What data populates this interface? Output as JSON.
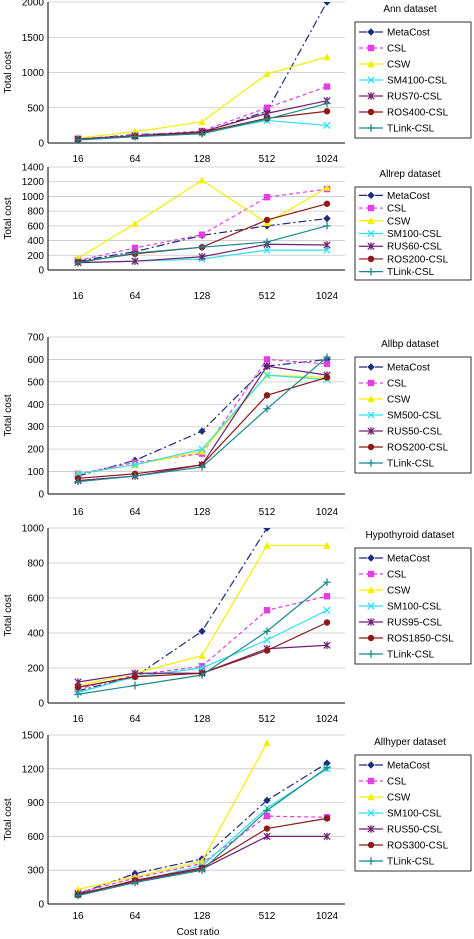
{
  "figure": {
    "ylabel": "Total cost",
    "xlabel": "Cost ratio"
  },
  "chart_data": [
    {
      "type": "line",
      "title": "Ann dataset",
      "x": [
        16,
        64,
        128,
        512,
        1024
      ],
      "ylim": [
        0,
        2000
      ],
      "yticks": [
        0,
        500,
        1000,
        1500,
        2000
      ],
      "ylabel": "Total cost",
      "series": [
        {
          "name": "MetaCost",
          "values": [
            50,
            120,
            150,
            450,
            2000
          ],
          "color": "#1f2a7a",
          "dash": "8,3,2,3",
          "marker": "diamond"
        },
        {
          "name": "CSL",
          "values": [
            60,
            110,
            170,
            500,
            800
          ],
          "color": "#e040e0",
          "dash": "4,3",
          "marker": "square"
        },
        {
          "name": "CSW",
          "values": [
            70,
            160,
            300,
            980,
            1220
          ],
          "color": "#f0f000",
          "dash": "",
          "marker": "triangle"
        },
        {
          "name": "SM4100-CSL",
          "values": [
            40,
            90,
            140,
            320,
            250
          ],
          "color": "#30e0f0",
          "dash": "",
          "marker": "x"
        },
        {
          "name": "RUS70-CSL",
          "values": [
            55,
            100,
            160,
            420,
            600
          ],
          "color": "#702070",
          "dash": "",
          "marker": "star"
        },
        {
          "name": "ROS400-CSL",
          "values": [
            50,
            95,
            150,
            350,
            450
          ],
          "color": "#8b1a1a",
          "dash": "",
          "marker": "circle"
        },
        {
          "name": "TLink-CSL",
          "values": [
            45,
            90,
            130,
            340,
            560
          ],
          "color": "#1a8a8a",
          "dash": "",
          "marker": "plus"
        }
      ]
    },
    {
      "type": "line",
      "title": "Allrep dataset",
      "x": [
        16,
        64,
        128,
        512,
        1024
      ],
      "ylim": [
        0,
        1400
      ],
      "yticks": [
        0,
        200,
        400,
        600,
        800,
        1000,
        1200,
        1400
      ],
      "ylabel": "Total cost",
      "series": [
        {
          "name": "MetaCost",
          "values": [
            120,
            250,
            470,
            600,
            700
          ],
          "color": "#1f2a7a",
          "dash": "8,3,2,3",
          "marker": "diamond"
        },
        {
          "name": "CSL",
          "values": [
            130,
            300,
            480,
            990,
            1100
          ],
          "color": "#e040e0",
          "dash": "4,3",
          "marker": "square"
        },
        {
          "name": "CSW",
          "values": [
            160,
            630,
            1220,
            640,
            1120
          ],
          "color": "#f0f000",
          "dash": "",
          "marker": "triangle"
        },
        {
          "name": "SM100-CSL",
          "values": [
            100,
            120,
            150,
            270,
            270
          ],
          "color": "#30e0f0",
          "dash": "",
          "marker": "x"
        },
        {
          "name": "RUS60-CSL",
          "values": [
            100,
            120,
            180,
            350,
            340
          ],
          "color": "#702070",
          "dash": "",
          "marker": "star"
        },
        {
          "name": "ROS200-CSL",
          "values": [
            110,
            220,
            310,
            680,
            900
          ],
          "color": "#8b1a1a",
          "dash": "",
          "marker": "circle"
        },
        {
          "name": "TLink-CSL",
          "values": [
            100,
            230,
            310,
            380,
            600
          ],
          "color": "#1a8a8a",
          "dash": "",
          "marker": "plus"
        }
      ]
    },
    {
      "type": "line",
      "title": "Allbp dataset",
      "x": [
        16,
        64,
        128,
        512,
        1024
      ],
      "ylim": [
        0,
        700
      ],
      "yticks": [
        0,
        100,
        200,
        300,
        400,
        500,
        600,
        700
      ],
      "ylabel": "Total cost",
      "series": [
        {
          "name": "MetaCost",
          "values": [
            80,
            150,
            280,
            570,
            600
          ],
          "color": "#1f2a7a",
          "dash": "8,3,2,3",
          "marker": "diamond"
        },
        {
          "name": "CSL",
          "values": [
            90,
            140,
            180,
            600,
            580
          ],
          "color": "#e040e0",
          "dash": "4,3",
          "marker": "square"
        },
        {
          "name": "CSW",
          "values": [
            90,
            130,
            190,
            530,
            520
          ],
          "color": "#f0f000",
          "dash": "",
          "marker": "triangle"
        },
        {
          "name": "SM500-CSL",
          "values": [
            90,
            130,
            200,
            530,
            510
          ],
          "color": "#30e0f0",
          "dash": "",
          "marker": "x"
        },
        {
          "name": "RUS50-CSL",
          "values": [
            60,
            80,
            130,
            570,
            530
          ],
          "color": "#702070",
          "dash": "",
          "marker": "star"
        },
        {
          "name": "ROS200-CSL",
          "values": [
            70,
            90,
            130,
            440,
            520
          ],
          "color": "#8b1a1a",
          "dash": "",
          "marker": "circle"
        },
        {
          "name": "TLink-CSL",
          "values": [
            55,
            80,
            120,
            380,
            610
          ],
          "color": "#1a8a8a",
          "dash": "",
          "marker": "plus"
        }
      ]
    },
    {
      "type": "line",
      "title": "Hypothyroid dataset",
      "x": [
        16,
        64,
        128,
        512,
        1024
      ],
      "ylim": [
        0,
        1000
      ],
      "yticks": [
        0,
        200,
        400,
        600,
        800,
        1000
      ],
      "ylabel": "Total cost",
      "series": [
        {
          "name": "MetaCost",
          "values": [
            70,
            150,
            410,
            1000,
            null
          ],
          "color": "#1f2a7a",
          "dash": "8,3,2,3",
          "marker": "diamond"
        },
        {
          "name": "CSL",
          "values": [
            80,
            160,
            210,
            530,
            610
          ],
          "color": "#e040e0",
          "dash": "4,3",
          "marker": "square"
        },
        {
          "name": "CSW",
          "values": [
            100,
            170,
            270,
            900,
            900
          ],
          "color": "#f0f000",
          "dash": "",
          "marker": "triangle"
        },
        {
          "name": "SM100-CSL",
          "values": [
            60,
            150,
            200,
            360,
            530
          ],
          "color": "#30e0f0",
          "dash": "",
          "marker": "x"
        },
        {
          "name": "RUS95-CSL",
          "values": [
            120,
            170,
            170,
            310,
            330
          ],
          "color": "#702070",
          "dash": "",
          "marker": "star"
        },
        {
          "name": "ROS1850-CSL",
          "values": [
            90,
            150,
            170,
            300,
            460
          ],
          "color": "#8b1a1a",
          "dash": "",
          "marker": "circle"
        },
        {
          "name": "TLink-CSL",
          "values": [
            50,
            100,
            160,
            410,
            690
          ],
          "color": "#1a8a8a",
          "dash": "",
          "marker": "plus"
        }
      ]
    },
    {
      "type": "line",
      "title": "Allhyper dataset",
      "x": [
        16,
        64,
        128,
        512,
        1024
      ],
      "ylim": [
        0,
        1500
      ],
      "yticks": [
        0,
        300,
        600,
        900,
        1200,
        1500
      ],
      "ylabel": "Total cost",
      "xlabel": "Cost ratio",
      "series": [
        {
          "name": "MetaCost",
          "values": [
            90,
            270,
            400,
            920,
            1250
          ],
          "color": "#1f2a7a",
          "dash": "8,3,2,3",
          "marker": "diamond"
        },
        {
          "name": "CSL",
          "values": [
            100,
            230,
            360,
            780,
            770
          ],
          "color": "#e040e0",
          "dash": "4,3",
          "marker": "square"
        },
        {
          "name": "CSW",
          "values": [
            130,
            240,
            380,
            1430,
            null
          ],
          "color": "#f0f000",
          "dash": "",
          "marker": "triangle"
        },
        {
          "name": "SM100-CSL",
          "values": [
            80,
            200,
            340,
            850,
            1200
          ],
          "color": "#30e0f0",
          "dash": "",
          "marker": "x"
        },
        {
          "name": "RUS50-CSL",
          "values": [
            90,
            200,
            310,
            600,
            600
          ],
          "color": "#702070",
          "dash": "",
          "marker": "star"
        },
        {
          "name": "ROS300-CSL",
          "values": [
            80,
            210,
            320,
            670,
            760
          ],
          "color": "#8b1a1a",
          "dash": "",
          "marker": "circle"
        },
        {
          "name": "TLink-CSL",
          "values": [
            75,
            190,
            300,
            830,
            1210
          ],
          "color": "#1a8a8a",
          "dash": "",
          "marker": "plus"
        }
      ]
    }
  ]
}
